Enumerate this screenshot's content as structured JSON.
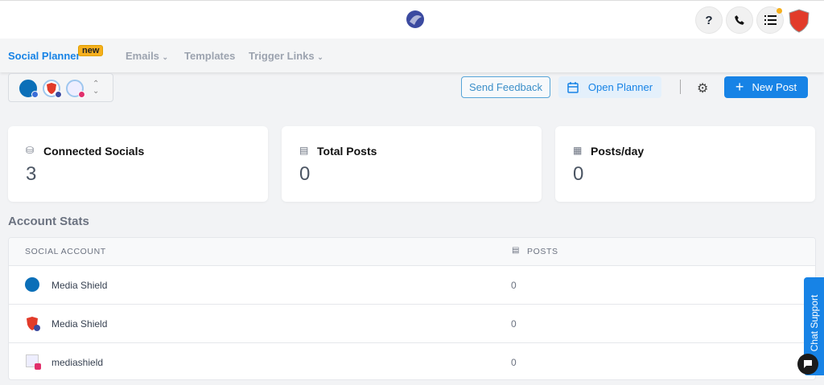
{
  "header": {
    "help_label": "?",
    "notification_dot_color": "#f6b01d"
  },
  "nav": {
    "tabs": [
      {
        "label": "Social Planner",
        "badge": "new",
        "active": true
      },
      {
        "label": "Emails"
      },
      {
        "label": "Templates"
      },
      {
        "label": "Trigger Links"
      }
    ]
  },
  "toolbar": {
    "send_feedback": "Send Feedback",
    "open_planner": "Open Planner",
    "new_post": "New Post"
  },
  "stats": [
    {
      "label": "Connected Socials",
      "value": "3"
    },
    {
      "label": "Total Posts",
      "value": "0"
    },
    {
      "label": "Posts/day",
      "value": "0"
    }
  ],
  "account_stats": {
    "title": "Account Stats",
    "columns": [
      "SOCIAL ACCOUNT",
      "POSTS"
    ],
    "rows": [
      {
        "name": "Media Shield",
        "posts": "0",
        "platform": "google-business"
      },
      {
        "name": "Media Shield",
        "posts": "0",
        "platform": "facebook"
      },
      {
        "name": "mediashield",
        "posts": "0",
        "platform": "instagram"
      }
    ]
  },
  "chat": {
    "label": "Chat Support"
  },
  "colors": {
    "accent": "#1783e6",
    "badge": "#f6b01d"
  }
}
